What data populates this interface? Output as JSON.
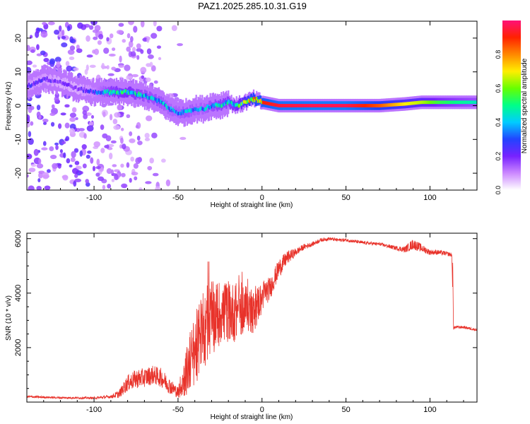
{
  "title": "PAZ1.2025.285.10.31.G19",
  "chart_data": [
    {
      "type": "heatmap",
      "name": "spectrogram",
      "xlabel": "Height of straight line (km)",
      "ylabel": "Frequency (Hz)",
      "xlim": [
        -140,
        128
      ],
      "ylim": [
        -25,
        25
      ],
      "xticks": [
        -100,
        -50,
        0,
        50,
        100
      ],
      "yticks": [
        -20,
        -10,
        0,
        10,
        20
      ],
      "colorbar": {
        "label": "Normalized spectral amplitude",
        "range": [
          0,
          1
        ],
        "ticks": [
          "0.0",
          "0.2",
          "0.4",
          "0.6",
          "0.8"
        ],
        "colors": [
          "#ffffff",
          "#cc88ff",
          "#7722ff",
          "#2244ff",
          "#00ccff",
          "#00ff88",
          "#66ff00",
          "#ffee00",
          "#ff8800",
          "#ff2200",
          "#ff1177"
        ]
      },
      "ridge": {
        "x": [
          -138,
          -130,
          -120,
          -110,
          -100,
          -90,
          -80,
          -70,
          -60,
          -55,
          -50,
          -45,
          -40,
          -35,
          -30,
          -25,
          -20,
          -15,
          -10,
          -5,
          0,
          10,
          30,
          50,
          70,
          85,
          95,
          105,
          115,
          128
        ],
        "freq": [
          6,
          8,
          7,
          5,
          4,
          4,
          4,
          3,
          1,
          -1,
          -2,
          -2,
          -1,
          -1,
          0,
          0,
          1,
          0,
          1,
          2,
          1,
          0,
          0,
          0,
          0,
          0.5,
          1,
          1,
          1,
          1
        ],
        "amplitude": [
          0.25,
          0.25,
          0.2,
          0.2,
          0.3,
          0.5,
          0.55,
          0.45,
          0.45,
          0.4,
          0.4,
          0.45,
          0.4,
          0.4,
          0.45,
          0.5,
          0.5,
          0.55,
          0.7,
          0.85,
          0.9,
          0.95,
          0.97,
          0.97,
          0.85,
          0.7,
          0.65,
          0.55,
          0.5,
          0.45
        ]
      }
    },
    {
      "type": "line",
      "name": "snr",
      "xlabel": "Height of straight line (km)",
      "ylabel": "SNR (10 * v/v)",
      "xlim": [
        -140,
        128
      ],
      "ylim": [
        0,
        6200
      ],
      "xticks": [
        -100,
        -50,
        0,
        50,
        100
      ],
      "yticks": [
        2000,
        4000,
        6000
      ],
      "color": "#e8322a",
      "series": [
        {
          "name": "SNR",
          "x": [
            -140,
            -120,
            -100,
            -90,
            -85,
            -80,
            -75,
            -70,
            -65,
            -60,
            -55,
            -50,
            -45,
            -40,
            -35,
            -30,
            -25,
            -20,
            -15,
            -10,
            -5,
            0,
            5,
            10,
            15,
            20,
            25,
            30,
            35,
            40,
            45,
            50,
            60,
            70,
            80,
            85,
            90,
            95,
            100,
            105,
            110,
            113,
            114,
            115,
            120,
            128
          ],
          "y": [
            200,
            160,
            150,
            200,
            300,
            700,
            850,
            900,
            1000,
            900,
            600,
            350,
            1100,
            1900,
            2600,
            3000,
            3300,
            3300,
            3300,
            3500,
            3300,
            3900,
            4200,
            4900,
            5300,
            5500,
            5700,
            5800,
            5950,
            6000,
            5950,
            5950,
            5850,
            5800,
            5650,
            5600,
            5800,
            5650,
            5500,
            5500,
            5450,
            5400,
            2700,
            2750,
            2750,
            2650
          ],
          "noise": [
            40,
            40,
            40,
            60,
            150,
            300,
            350,
            350,
            350,
            350,
            300,
            200,
            900,
            1300,
            1400,
            1300,
            1200,
            1100,
            1100,
            900,
            800,
            600,
            400,
            350,
            250,
            150,
            100,
            80,
            70,
            60,
            60,
            60,
            60,
            60,
            80,
            120,
            200,
            150,
            100,
            90,
            80,
            80,
            60,
            60,
            50,
            50
          ]
        }
      ]
    }
  ]
}
